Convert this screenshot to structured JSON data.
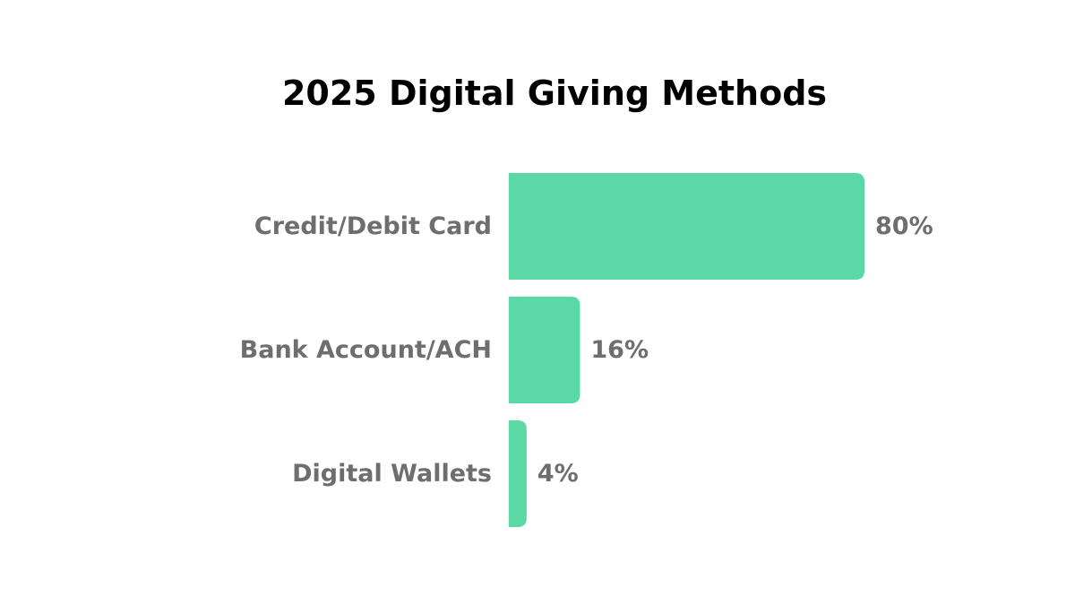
{
  "chart_data": {
    "type": "bar",
    "orientation": "horizontal",
    "title": "2025 Digital Giving Methods",
    "categories": [
      "Credit/Debit Card",
      "Bank Account/ACH",
      "Digital Wallets"
    ],
    "values": [
      80,
      16,
      4
    ],
    "value_labels": [
      "80%",
      "16%",
      "4%"
    ],
    "unit": "%",
    "xlim": [
      0,
      100
    ],
    "grid": false,
    "legend": "none",
    "bar_color": "#5ad8a6"
  }
}
